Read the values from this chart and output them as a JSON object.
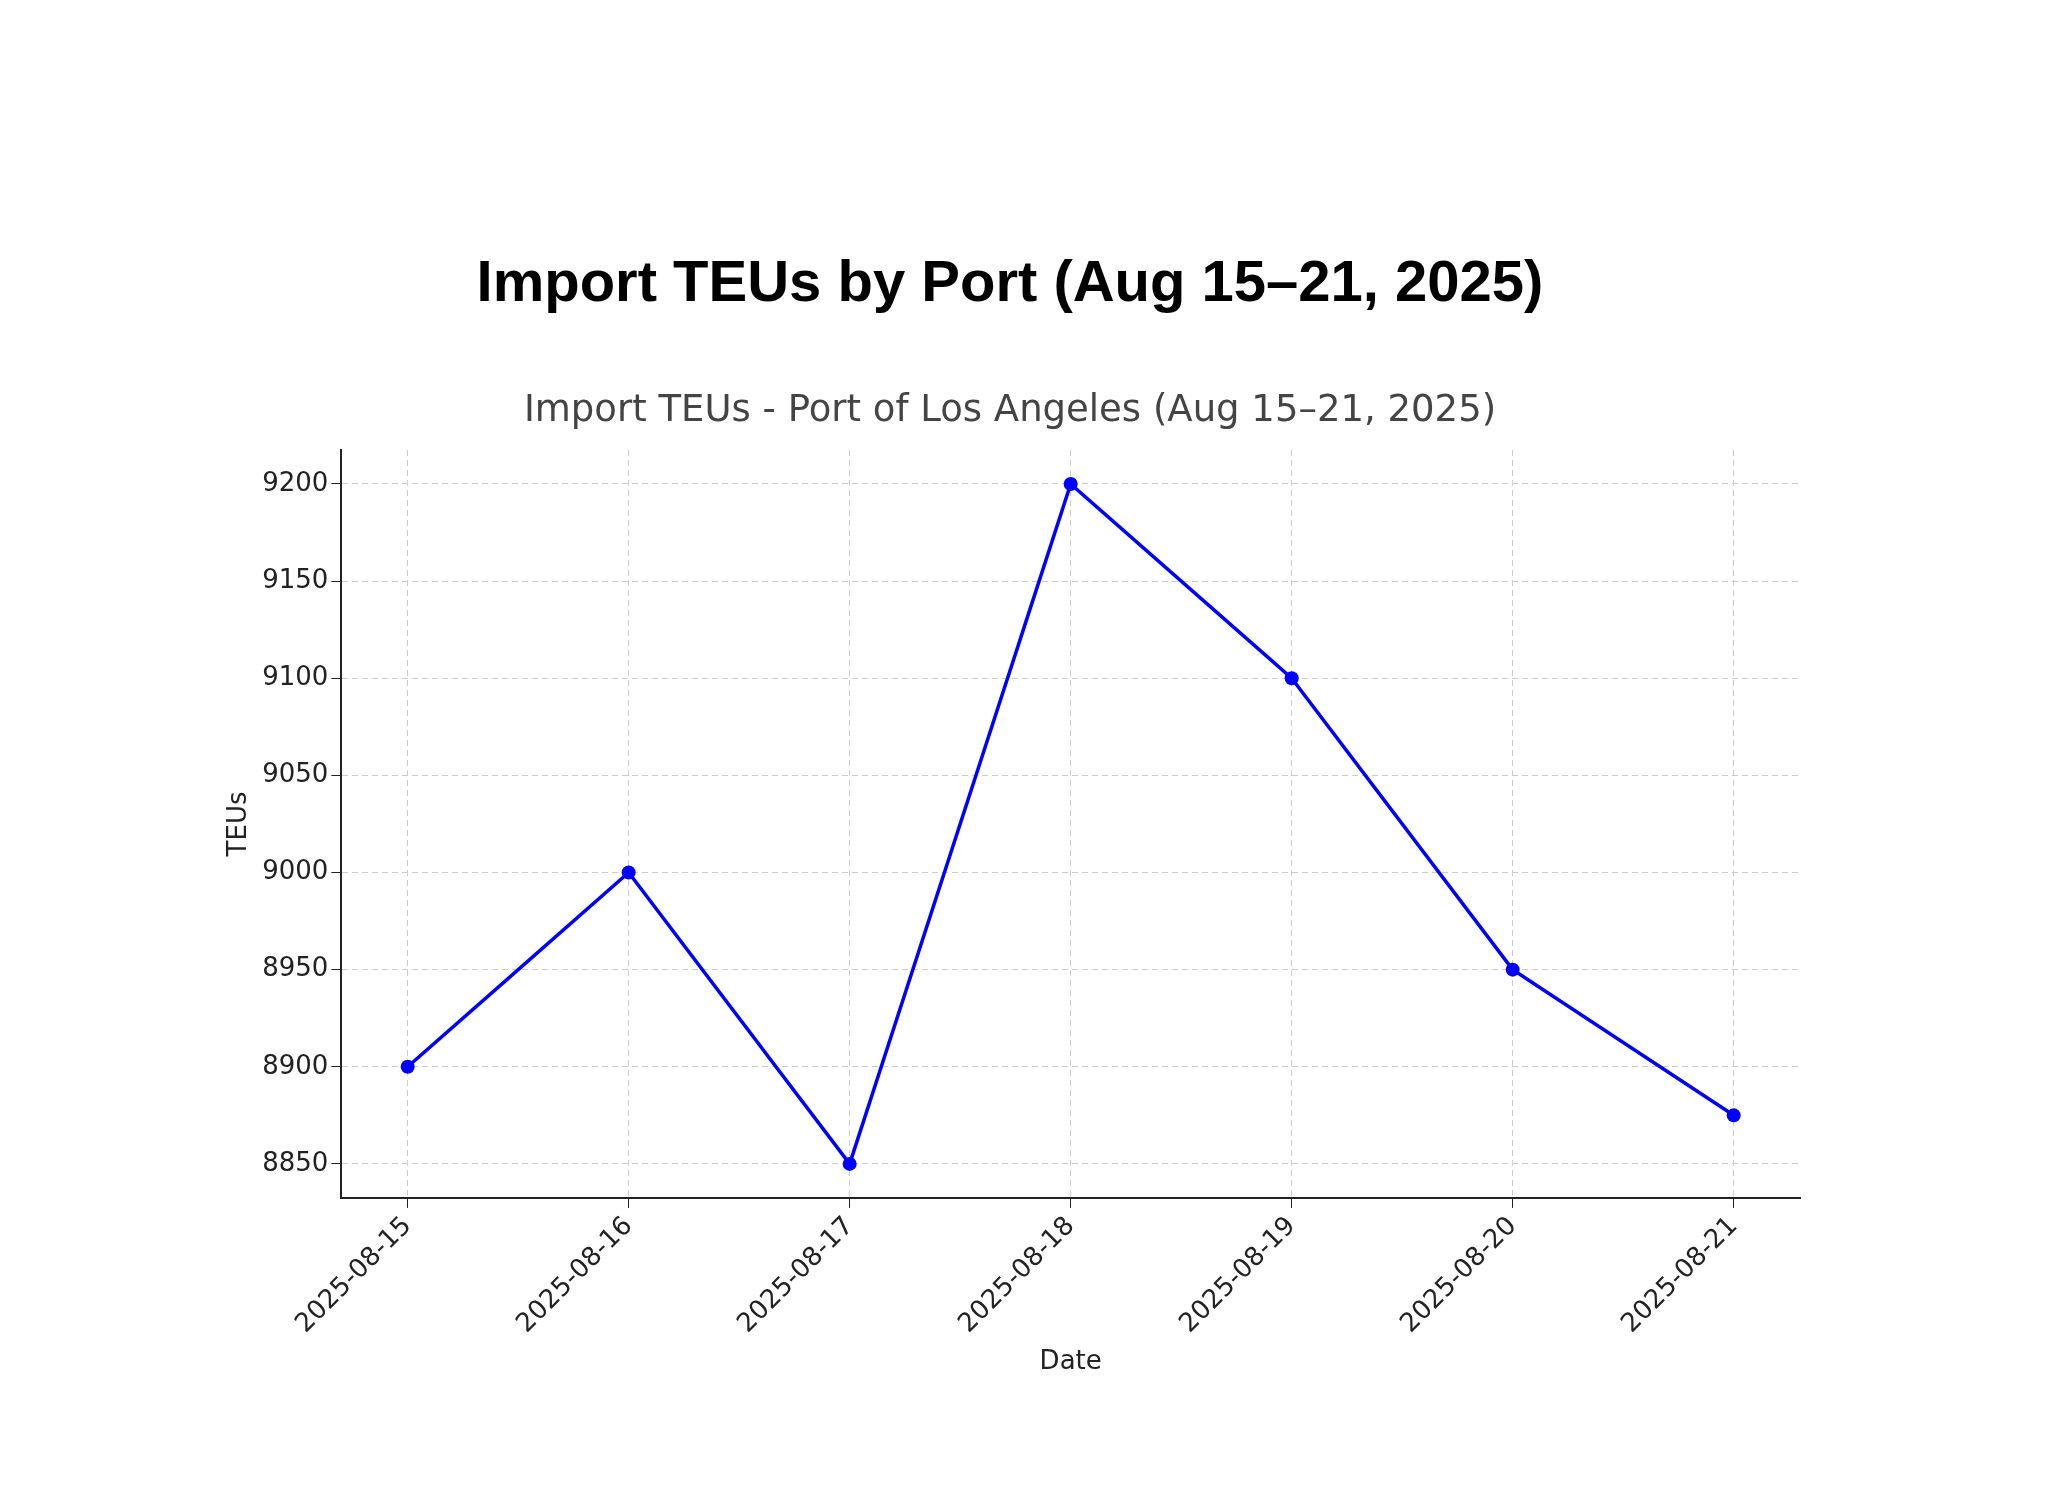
{
  "chart_data": {
    "type": "line",
    "title": "Import TEUs by Port (Aug 15–21, 2025)",
    "subtitle": "Import TEUs - Port of Los Angeles (Aug 15–21, 2025)",
    "xlabel": "Date",
    "ylabel": "TEUs",
    "categories": [
      "2025-08-15",
      "2025-08-16",
      "2025-08-17",
      "2025-08-18",
      "2025-08-19",
      "2025-08-20",
      "2025-08-21"
    ],
    "series": [
      {
        "color": "#0000ff",
        "values": [
          8900,
          9000,
          8850,
          9200,
          9100,
          8950,
          8875
        ]
      }
    ],
    "ylim": [
      8832.5,
      9217.5
    ],
    "yticks": [
      8850,
      8900,
      8950,
      9000,
      9050,
      9100,
      9150,
      9200
    ],
    "grid": true,
    "legend": false,
    "marker": "circle",
    "line_style": "solid"
  }
}
